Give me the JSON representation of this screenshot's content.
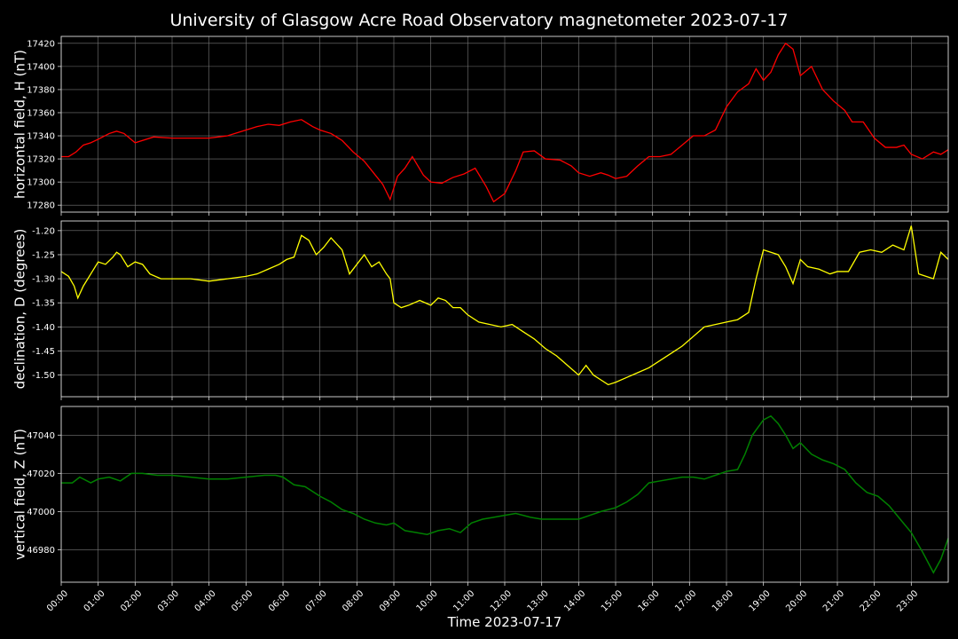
{
  "colors": {
    "background": "#000000",
    "h_series": "#ff0000",
    "d_series": "#ffff00",
    "z_series": "#008000",
    "grid": "#777777",
    "text": "#ffffff"
  },
  "chart_data": {
    "type": "line",
    "title": "University of Glasgow Acre Road Observatory magnetometer 2023-07-17",
    "xlabel": "Time 2023-07-17",
    "x_ticks": [
      "00:00",
      "01:00",
      "02:00",
      "03:00",
      "04:00",
      "05:00",
      "06:00",
      "07:00",
      "08:00",
      "09:00",
      "10:00",
      "11:00",
      "12:00",
      "13:00",
      "14:00",
      "15:00",
      "16:00",
      "17:00",
      "18:00",
      "19:00",
      "20:00",
      "21:00",
      "22:00",
      "23:00"
    ],
    "xlim": [
      "00:00",
      "24:00"
    ],
    "grid": true,
    "panels": [
      {
        "ylabel": "horizontal field, H (nT)",
        "color": "#ff0000",
        "ylim": [
          17274,
          17426
        ],
        "y_ticks": [
          "17280",
          "17300",
          "17320",
          "17340",
          "17360",
          "17380",
          "17400",
          "17420"
        ],
        "series": [
          {
            "x": [
              0,
              0.2,
              0.4,
              0.6,
              0.8,
              1.0,
              1.3,
              1.5,
              1.7,
              2.0,
              2.5,
              3.0,
              3.5,
              4.0,
              4.5,
              5.0,
              5.3,
              5.6,
              5.9,
              6.2,
              6.5,
              6.8,
              7.0,
              7.3,
              7.6,
              7.9,
              8.2,
              8.5,
              8.7,
              8.9,
              9.1,
              9.3,
              9.5,
              9.8,
              10.0,
              10.3,
              10.6,
              10.9,
              11.2,
              11.5,
              11.7,
              12.0,
              12.3,
              12.5,
              12.8,
              13.1,
              13.5,
              13.8,
              14.0,
              14.3,
              14.6,
              14.8,
              15.0,
              15.3,
              15.6,
              15.9,
              16.2,
              16.5,
              16.8,
              17.1,
              17.4,
              17.7,
              18.0,
              18.3,
              18.6,
              18.8,
              19.0,
              19.2,
              19.4,
              19.6,
              19.8,
              20.0,
              20.3,
              20.6,
              20.9,
              21.2,
              21.4,
              21.7,
              22.0,
              22.3,
              22.6,
              22.8,
              23.0,
              23.3,
              23.6,
              23.8,
              24.0
            ],
            "y": [
              17322,
              17322,
              17326,
              17332,
              17334,
              17337,
              17342,
              17344,
              17342,
              17334,
              17339,
              17338,
              17338,
              17338,
              17340,
              17345,
              17348,
              17350,
              17349,
              17352,
              17354,
              17348,
              17345,
              17342,
              17336,
              17326,
              17318,
              17306,
              17298,
              17285,
              17305,
              17312,
              17322,
              17306,
              17300,
              17299,
              17304,
              17307,
              17312,
              17296,
              17283,
              17290,
              17310,
              17326,
              17327,
              17320,
              17319,
              17314,
              17308,
              17305,
              17308,
              17306,
              17303,
              17305,
              17314,
              17322,
              17322,
              17324,
              17332,
              17340,
              17340,
              17345,
              17365,
              17378,
              17385,
              17398,
              17388,
              17395,
              17410,
              17420,
              17415,
              17392,
              17400,
              17380,
              17370,
              17362,
              17352,
              17352,
              17338,
              17330,
              17330,
              17332,
              17324,
              17320,
              17326,
              17324,
              17328
            ]
          }
        ]
      },
      {
        "ylabel": "declination, D (degrees)",
        "color": "#ffff00",
        "ylim": [
          -1.545,
          -1.18
        ],
        "y_ticks": [
          "-1.20",
          "-1.25",
          "-1.30",
          "-1.35",
          "-1.40",
          "-1.45",
          "-1.50"
        ],
        "series": [
          {
            "x": [
              0,
              0.2,
              0.35,
              0.45,
              0.6,
              0.8,
              1.0,
              1.2,
              1.4,
              1.5,
              1.6,
              1.8,
              2.0,
              2.2,
              2.4,
              2.7,
              3.0,
              3.5,
              4.0,
              4.5,
              5.0,
              5.3,
              5.6,
              5.9,
              6.1,
              6.3,
              6.5,
              6.7,
              6.9,
              7.1,
              7.3,
              7.6,
              7.8,
              8.0,
              8.2,
              8.4,
              8.6,
              8.8,
              8.9,
              9.0,
              9.2,
              9.4,
              9.7,
              10.0,
              10.2,
              10.4,
              10.6,
              10.8,
              11.0,
              11.3,
              11.6,
              11.9,
              12.2,
              12.5,
              12.8,
              13.1,
              13.4,
              13.7,
              14.0,
              14.2,
              14.4,
              14.6,
              14.8,
              15.0,
              15.3,
              15.6,
              15.9,
              16.2,
              16.5,
              16.8,
              17.1,
              17.4,
              17.7,
              18.0,
              18.3,
              18.6,
              18.8,
              19.0,
              19.2,
              19.4,
              19.6,
              19.8,
              20.0,
              20.2,
              20.5,
              20.8,
              21.0,
              21.3,
              21.6,
              21.9,
              22.2,
              22.5,
              22.8,
              23.0,
              23.2,
              23.4,
              23.6,
              23.8,
              24.0
            ],
            "y": [
              -1.285,
              -1.295,
              -1.315,
              -1.34,
              -1.315,
              -1.29,
              -1.265,
              -1.27,
              -1.255,
              -1.245,
              -1.25,
              -1.275,
              -1.265,
              -1.27,
              -1.29,
              -1.3,
              -1.3,
              -1.3,
              -1.305,
              -1.3,
              -1.295,
              -1.29,
              -1.28,
              -1.27,
              -1.26,
              -1.255,
              -1.21,
              -1.22,
              -1.25,
              -1.235,
              -1.215,
              -1.24,
              -1.29,
              -1.27,
              -1.25,
              -1.275,
              -1.265,
              -1.29,
              -1.3,
              -1.35,
              -1.36,
              -1.355,
              -1.345,
              -1.355,
              -1.34,
              -1.345,
              -1.36,
              -1.36,
              -1.375,
              -1.39,
              -1.395,
              -1.4,
              -1.395,
              -1.41,
              -1.425,
              -1.445,
              -1.46,
              -1.48,
              -1.5,
              -1.48,
              -1.5,
              -1.51,
              -1.52,
              -1.515,
              -1.505,
              -1.495,
              -1.485,
              -1.47,
              -1.455,
              -1.44,
              -1.42,
              -1.4,
              -1.395,
              -1.39,
              -1.385,
              -1.37,
              -1.3,
              -1.24,
              -1.245,
              -1.25,
              -1.275,
              -1.31,
              -1.26,
              -1.275,
              -1.28,
              -1.29,
              -1.285,
              -1.285,
              -1.245,
              -1.24,
              -1.245,
              -1.23,
              -1.24,
              -1.19,
              -1.29,
              -1.295,
              -1.3,
              -1.245,
              -1.26
            ]
          }
        ]
      },
      {
        "ylabel": "vertical field, Z (nT)",
        "color": "#008000",
        "ylim": [
          46963,
          47055
        ],
        "y_ticks": [
          "46980",
          "47000",
          "47020",
          "47040"
        ],
        "series": [
          {
            "x": [
              0,
              0.3,
              0.5,
              0.8,
              1.0,
              1.3,
              1.6,
              1.9,
              2.2,
              2.6,
              3.0,
              3.5,
              4.0,
              4.5,
              5.0,
              5.5,
              5.8,
              6.0,
              6.3,
              6.6,
              7.0,
              7.3,
              7.6,
              7.9,
              8.2,
              8.5,
              8.8,
              9.0,
              9.3,
              9.6,
              9.9,
              10.2,
              10.5,
              10.8,
              11.1,
              11.4,
              11.7,
              12.0,
              12.3,
              12.7,
              13.0,
              13.5,
              14.0,
              14.3,
              14.6,
              15.0,
              15.3,
              15.6,
              15.9,
              16.2,
              16.5,
              16.8,
              17.1,
              17.4,
              17.7,
              18.0,
              18.3,
              18.5,
              18.7,
              19.0,
              19.2,
              19.4,
              19.6,
              19.8,
              20.0,
              20.3,
              20.6,
              20.9,
              21.2,
              21.5,
              21.8,
              22.1,
              22.4,
              22.7,
              23.0,
              23.3,
              23.6,
              23.8,
              24.0
            ],
            "y": [
              47015,
              47015,
              47018,
              47015,
              47017,
              47018,
              47016,
              47020,
              47020,
              47019,
              47019,
              47018,
              47017,
              47017,
              47018,
              47019,
              47019,
              47018,
              47014,
              47013,
              47008,
              47005,
              47001,
              46999,
              46996,
              46994,
              46993,
              46994,
              46990,
              46989,
              46988,
              46990,
              46991,
              46989,
              46994,
              46996,
              46997,
              46998,
              46999,
              46997,
              46996,
              46996,
              46996,
              46998,
              47000,
              47002,
              47005,
              47009,
              47015,
              47016,
              47017,
              47018,
              47018,
              47017,
              47019,
              47021,
              47022,
              47030,
              47040,
              47048,
              47050,
              47046,
              47040,
              47033,
              47036,
              47030,
              47027,
              47025,
              47022,
              47015,
              47010,
              47008,
              47003,
              46996,
              46989,
              46979,
              46968,
              46975,
              46986
            ]
          }
        ]
      }
    ]
  }
}
